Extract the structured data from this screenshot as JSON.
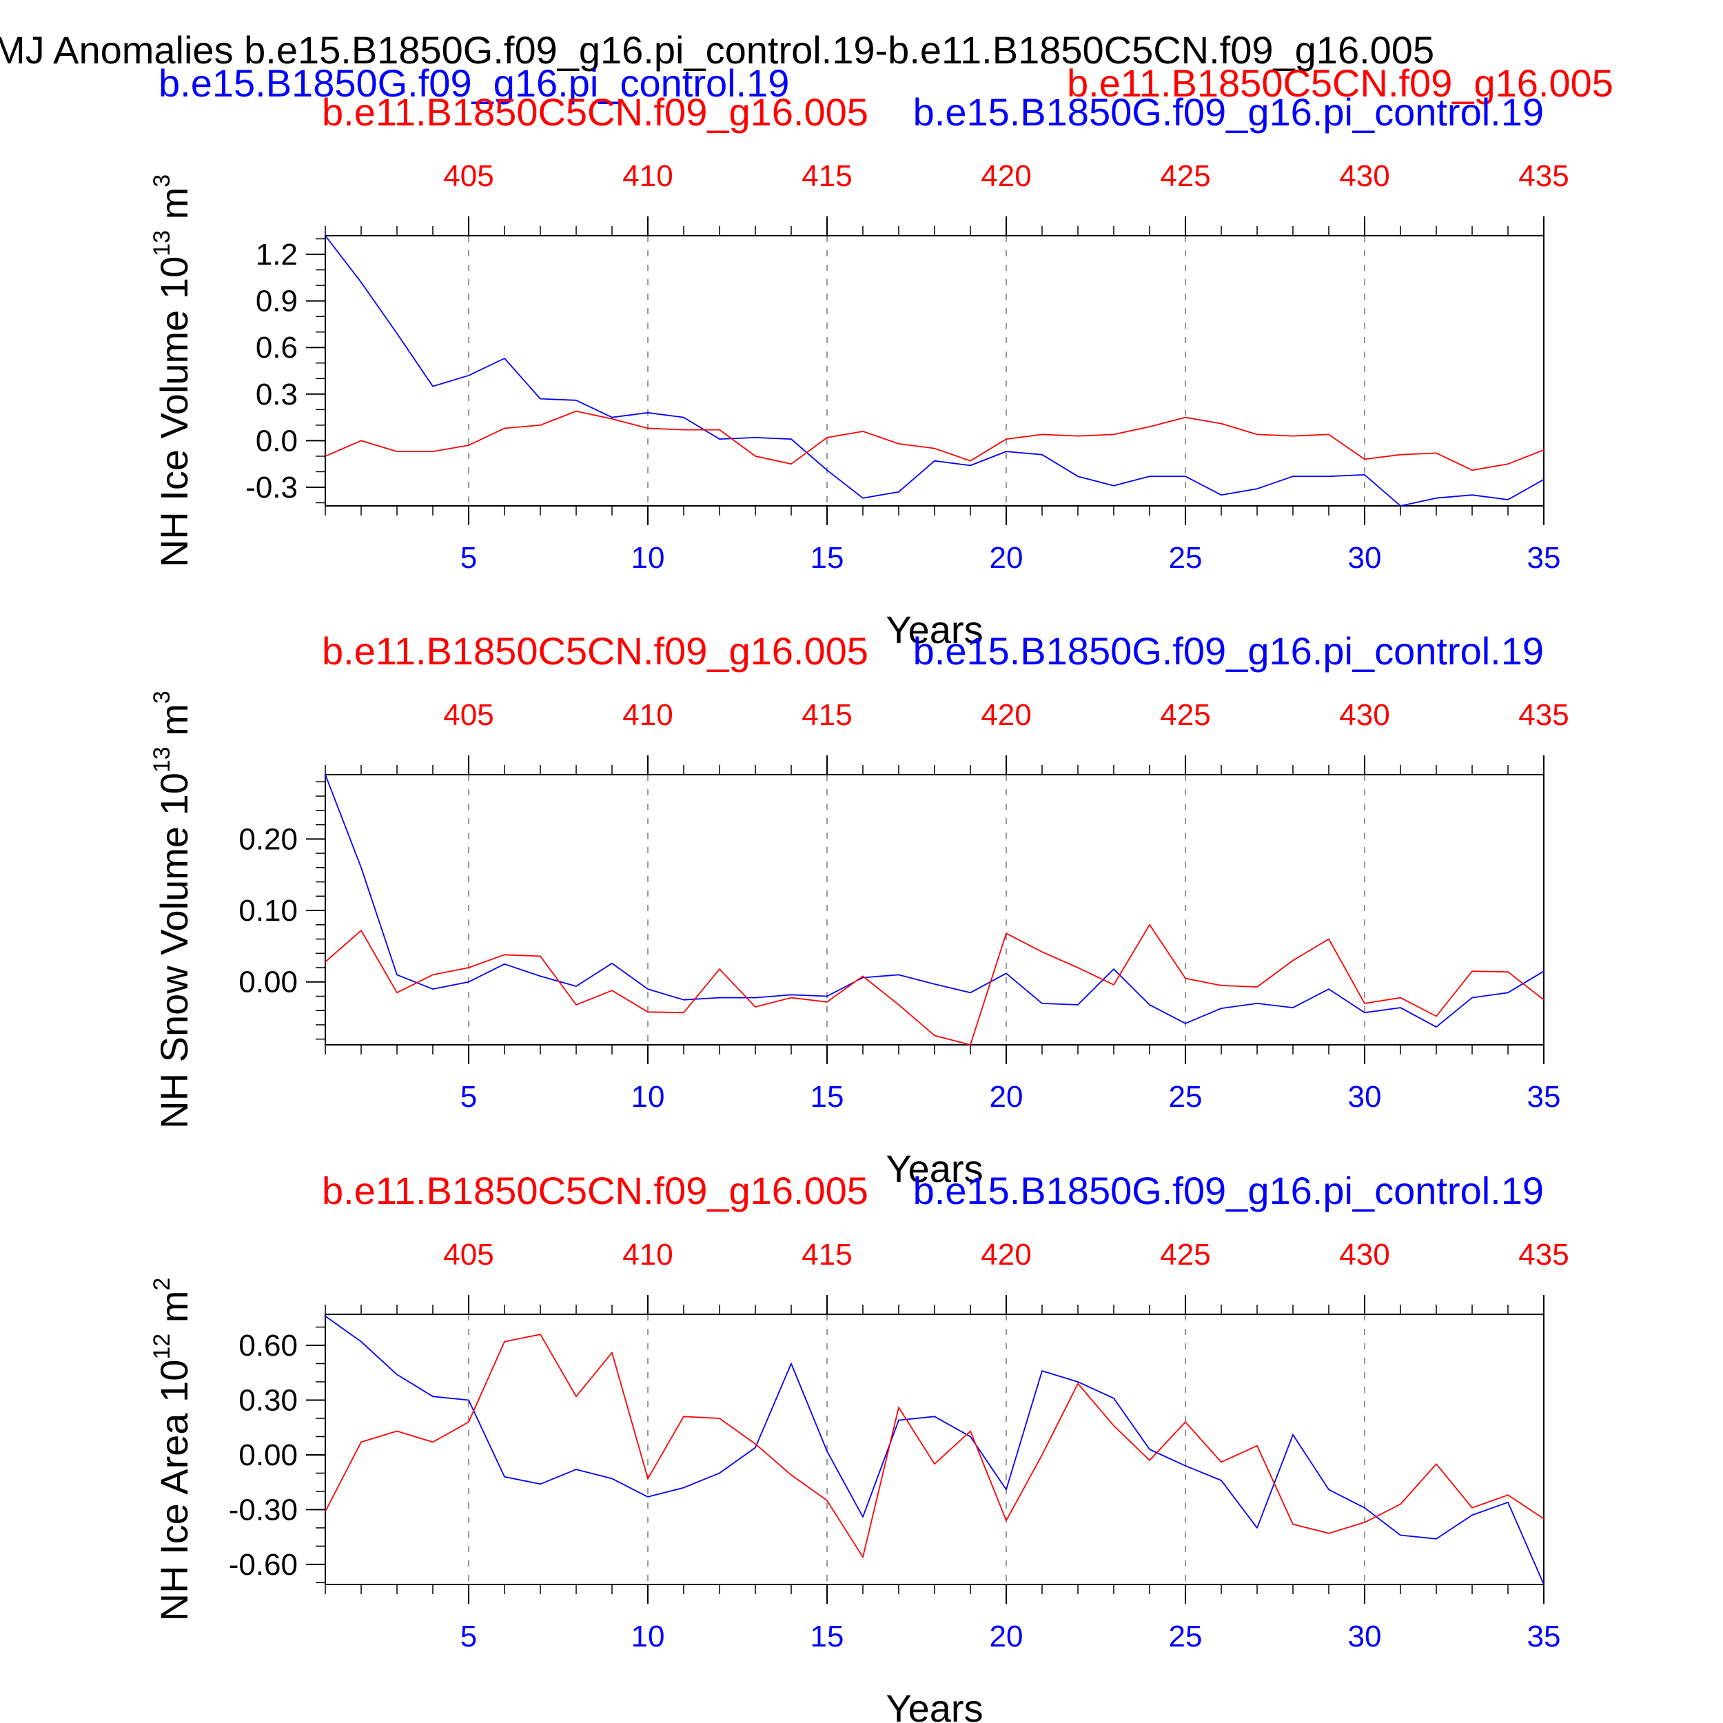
{
  "figure": {
    "main_title": "MJ Anomalies b.e15.B1850G.f09_g16.pi_control.19-b.e11.B1850C5CN.f09_g16.005",
    "legend_left": "b.e15.B1850G.f09_g16.pi_control.19",
    "legend_right": "b.e11.B1850C5CN.f09_g16.005",
    "colors": {
      "case1": "#0000ff",
      "case2": "#ff0000",
      "axis": "#000000",
      "grid": "#999999"
    }
  },
  "chart_data": [
    {
      "type": "line",
      "title_red": "b.e11.B1850C5CN.f09_g16.005",
      "title_blue": "b.e15.B1850G.f09_g16.pi_control.19",
      "ylabel": "NH Ice Volume 10",
      "ylabel_exp": "13",
      "ylabel_unit": " m",
      "ylabel_unit_exp": "3",
      "xlabel": "Years",
      "xlim": [
        1,
        35
      ],
      "ylim": [
        -0.42,
        1.32
      ],
      "yticks": [
        -0.3,
        0.0,
        0.3,
        0.6,
        0.9,
        1.2
      ],
      "ytick_labels": [
        "-0.3",
        "0.0",
        "0.3",
        "0.6",
        "0.9",
        "1.2"
      ],
      "yminor_step": 0.1,
      "bottom_ticks": [
        5,
        10,
        15,
        20,
        25,
        30,
        35
      ],
      "bottom_tick_labels": [
        "5",
        "10",
        "15",
        "20",
        "25",
        "30",
        "35"
      ],
      "top_ticks": [
        5,
        10,
        15,
        20,
        25,
        30,
        35
      ],
      "top_tick_labels": [
        "405",
        "410",
        "415",
        "420",
        "425",
        "430",
        "435"
      ],
      "x": [
        1,
        2,
        3,
        4,
        5,
        6,
        7,
        8,
        9,
        10,
        11,
        12,
        13,
        14,
        15,
        16,
        17,
        18,
        19,
        20,
        21,
        22,
        23,
        24,
        25,
        26,
        27,
        28,
        29,
        30,
        31,
        32,
        33,
        34,
        35
      ],
      "series": [
        {
          "color": "#0000ff",
          "values": [
            1.32,
            1.02,
            0.69,
            0.35,
            0.42,
            0.53,
            0.27,
            0.26,
            0.15,
            0.18,
            0.15,
            0.01,
            0.02,
            0.01,
            -0.19,
            -0.37,
            -0.33,
            -0.13,
            -0.16,
            -0.07,
            -0.09,
            -0.23,
            -0.29,
            -0.23,
            -0.23,
            -0.35,
            -0.31,
            -0.23,
            -0.23,
            -0.22,
            -0.42,
            -0.37,
            -0.35,
            -0.38,
            -0.25
          ]
        },
        {
          "color": "#ff0000",
          "values": [
            -0.1,
            0.0,
            -0.07,
            -0.07,
            -0.03,
            0.08,
            0.1,
            0.19,
            0.14,
            0.08,
            0.07,
            0.07,
            -0.1,
            -0.15,
            0.02,
            0.06,
            -0.02,
            -0.05,
            -0.13,
            0.01,
            0.04,
            0.03,
            0.04,
            0.09,
            0.15,
            0.11,
            0.04,
            0.03,
            0.04,
            -0.12,
            -0.09,
            -0.08,
            -0.19,
            -0.15,
            -0.06
          ]
        }
      ]
    },
    {
      "type": "line",
      "title_red": "b.e11.B1850C5CN.f09_g16.005",
      "title_blue": "b.e15.B1850G.f09_g16.pi_control.19",
      "ylabel": "NH Snow Volume 10",
      "ylabel_exp": "13",
      "ylabel_unit": " m",
      "ylabel_unit_exp": "3",
      "xlabel": "Years",
      "xlim": [
        1,
        35
      ],
      "ylim": [
        -0.088,
        0.29
      ],
      "yticks": [
        0.0,
        0.1,
        0.2
      ],
      "ytick_labels": [
        "0.00",
        "0.10",
        "0.20"
      ],
      "yminor_step": 0.02,
      "bottom_ticks": [
        5,
        10,
        15,
        20,
        25,
        30,
        35
      ],
      "bottom_tick_labels": [
        "5",
        "10",
        "15",
        "20",
        "25",
        "30",
        "35"
      ],
      "top_ticks": [
        5,
        10,
        15,
        20,
        25,
        30,
        35
      ],
      "top_tick_labels": [
        "405",
        "410",
        "415",
        "420",
        "425",
        "430",
        "435"
      ],
      "x": [
        1,
        2,
        3,
        4,
        5,
        6,
        7,
        8,
        9,
        10,
        11,
        12,
        13,
        14,
        15,
        16,
        17,
        18,
        19,
        20,
        21,
        22,
        23,
        24,
        25,
        26,
        27,
        28,
        29,
        30,
        31,
        32,
        33,
        34,
        35
      ],
      "series": [
        {
          "color": "#0000ff",
          "values": [
            0.29,
            0.16,
            0.01,
            -0.01,
            0.0,
            0.025,
            0.008,
            -0.006,
            0.026,
            -0.01,
            -0.025,
            -0.022,
            -0.022,
            -0.018,
            -0.02,
            0.006,
            0.01,
            -0.003,
            -0.015,
            0.012,
            -0.03,
            -0.032,
            0.018,
            -0.032,
            -0.058,
            -0.037,
            -0.03,
            -0.036,
            -0.01,
            -0.043,
            -0.036,
            -0.063,
            -0.022,
            -0.015,
            0.015
          ]
        },
        {
          "color": "#ff0000",
          "values": [
            0.028,
            0.072,
            -0.015,
            0.01,
            0.02,
            0.038,
            0.036,
            -0.032,
            -0.012,
            -0.042,
            -0.043,
            0.018,
            -0.035,
            -0.022,
            -0.028,
            0.008,
            -0.032,
            -0.075,
            -0.088,
            0.068,
            0.042,
            0.02,
            -0.004,
            0.08,
            0.005,
            -0.005,
            -0.007,
            0.03,
            0.06,
            -0.03,
            -0.022,
            -0.048,
            0.015,
            0.014,
            -0.025
          ]
        }
      ]
    },
    {
      "type": "line",
      "title_red": "b.e11.B1850C5CN.f09_g16.005",
      "title_blue": "b.e15.B1850G.f09_g16.pi_control.19",
      "ylabel": "NH Ice Area 10",
      "ylabel_exp": "12",
      "ylabel_unit": " m",
      "ylabel_unit_exp": "2",
      "xlabel": "Years",
      "xlim": [
        1,
        35
      ],
      "ylim": [
        -0.71,
        0.77
      ],
      "yticks": [
        -0.6,
        -0.3,
        0.0,
        0.3,
        0.6
      ],
      "ytick_labels": [
        "-0.60",
        "-0.30",
        "0.00",
        "0.30",
        "0.60"
      ],
      "yminor_step": 0.1,
      "bottom_ticks": [
        5,
        10,
        15,
        20,
        25,
        30,
        35
      ],
      "bottom_tick_labels": [
        "5",
        "10",
        "15",
        "20",
        "25",
        "30",
        "35"
      ],
      "top_ticks": [
        5,
        10,
        15,
        20,
        25,
        30,
        35
      ],
      "top_tick_labels": [
        "405",
        "410",
        "415",
        "420",
        "425",
        "430",
        "435"
      ],
      "x": [
        1,
        2,
        3,
        4,
        5,
        6,
        7,
        8,
        9,
        10,
        11,
        12,
        13,
        14,
        15,
        16,
        17,
        18,
        19,
        20,
        21,
        22,
        23,
        24,
        25,
        26,
        27,
        28,
        29,
        30,
        31,
        32,
        33,
        34,
        35
      ],
      "series": [
        {
          "color": "#0000ff",
          "values": [
            0.76,
            0.62,
            0.44,
            0.32,
            0.3,
            -0.12,
            -0.16,
            -0.08,
            -0.13,
            -0.23,
            -0.18,
            -0.1,
            0.04,
            0.5,
            0.02,
            -0.34,
            0.19,
            0.21,
            0.1,
            -0.19,
            0.46,
            0.4,
            0.31,
            0.03,
            -0.06,
            -0.14,
            -0.4,
            0.11,
            -0.19,
            -0.29,
            -0.44,
            -0.46,
            -0.33,
            -0.26,
            -0.71
          ]
        },
        {
          "color": "#ff0000",
          "values": [
            -0.31,
            0.07,
            0.13,
            0.07,
            0.18,
            0.62,
            0.66,
            0.32,
            0.56,
            -0.13,
            0.21,
            0.2,
            0.06,
            -0.11,
            -0.25,
            -0.56,
            0.26,
            -0.05,
            0.13,
            -0.36,
            0.0,
            0.39,
            0.16,
            -0.03,
            0.18,
            -0.04,
            0.05,
            -0.38,
            -0.43,
            -0.37,
            -0.27,
            -0.05,
            -0.29,
            -0.22,
            -0.35
          ]
        }
      ]
    }
  ]
}
